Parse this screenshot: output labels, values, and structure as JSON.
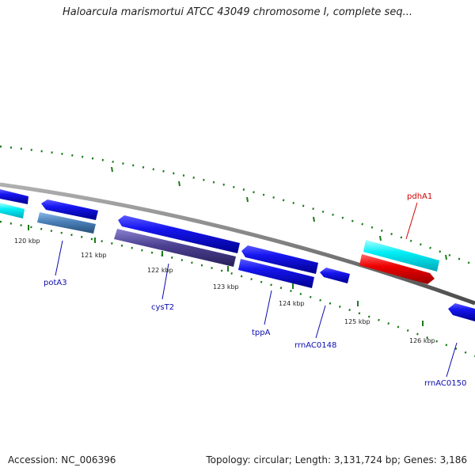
{
  "title": "Haloarcula marismortui ATCC 43049 chromosome I, complete seq...",
  "footer": {
    "accession": "Accession: NC_006396",
    "topology": "Topology: circular; Length: 3,131,724 bp; Genes: 3,186"
  },
  "scale": {
    "ticks": [
      "120 kbp",
      "121 kbp",
      "122 kbp",
      "123 kbp",
      "124 kbp",
      "125 kbp",
      "126 kbp"
    ]
  },
  "genes": [
    {
      "label": "potA3",
      "color": "#0b0bb0"
    },
    {
      "label": "cysT2",
      "color": "#0b0bb0"
    },
    {
      "label": "tppA",
      "color": "#0b0bb0"
    },
    {
      "label": "rrnAC0148",
      "color": "#0b0bb0"
    },
    {
      "label": "pdhA1",
      "color": "#d00000"
    },
    {
      "label": "rrnAC0150",
      "color": "#0b0bb0"
    }
  ],
  "colors": {
    "backbone": "#7a7a7a",
    "dots": "#1a7a1a",
    "cds_forward": "#1010e0",
    "cds_cyan": "#00e5f0",
    "cds_red": "#e00000",
    "cds_steel": "#4a7fb5",
    "cds_slate": "#483d8b"
  }
}
